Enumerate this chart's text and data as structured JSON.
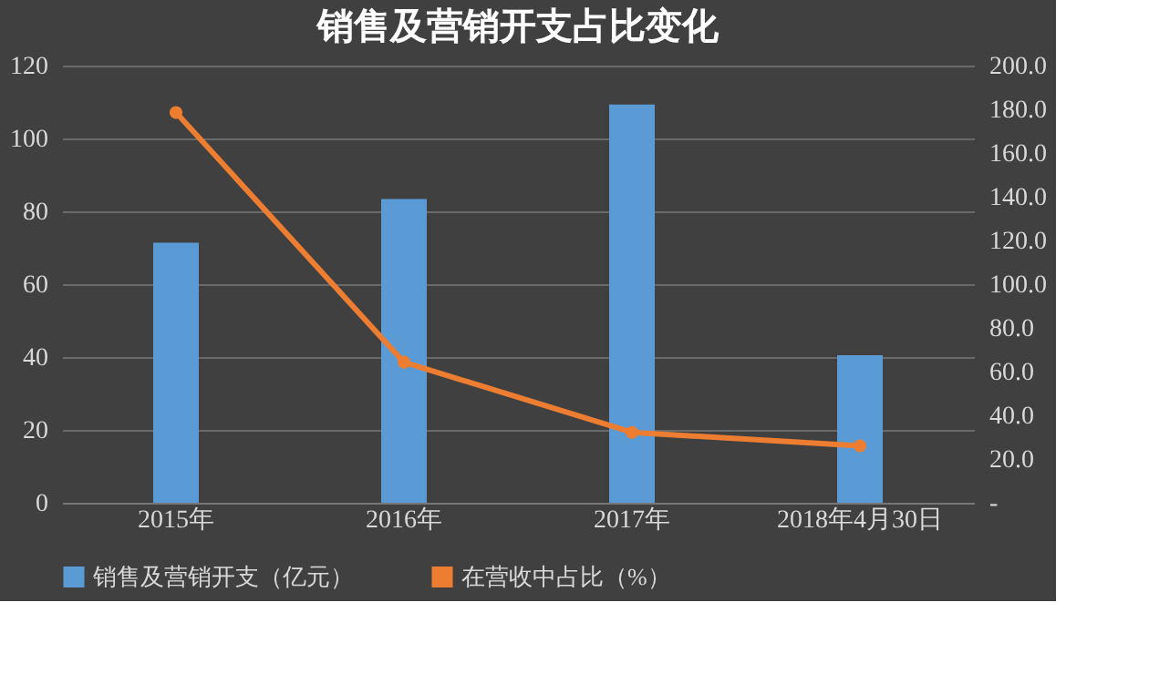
{
  "chart_data": {
    "type": "bar",
    "title": "销售及营销开支占比变化",
    "categories": [
      "2015年",
      "2016年",
      "2017年",
      "2018年4月30日"
    ],
    "series": [
      {
        "name": "销售及营销开支（亿元）",
        "color": "#5b9bd5",
        "values": [
          71.4,
          83.4,
          109.3,
          40.5
        ]
      },
      {
        "name": "在营收中占比（%）",
        "type": "line",
        "axis": "y2",
        "color": "#ed7d31",
        "values": [
          178.5,
          64.3,
          32.2,
          26.0
        ]
      }
    ],
    "ylim": [
      0,
      120
    ],
    "yticks": [
      0,
      20,
      40,
      60,
      80,
      100,
      120
    ],
    "y2lim": [
      0,
      200
    ],
    "y2ticks": [
      {
        "value": 0,
        "label": "-"
      },
      {
        "value": 20,
        "label": "20.0"
      },
      {
        "value": 40,
        "label": "40.0"
      },
      {
        "value": 60,
        "label": "60.0"
      },
      {
        "value": 80,
        "label": "80.0"
      },
      {
        "value": 100,
        "label": "100.0"
      },
      {
        "value": 120,
        "label": "120.0"
      },
      {
        "value": 140,
        "label": "140.0"
      },
      {
        "value": 160,
        "label": "160.0"
      },
      {
        "value": 180,
        "label": "180.0"
      },
      {
        "value": 200,
        "label": "200.0"
      }
    ],
    "grid": "y",
    "legend": "bottom",
    "marker": "circle"
  }
}
